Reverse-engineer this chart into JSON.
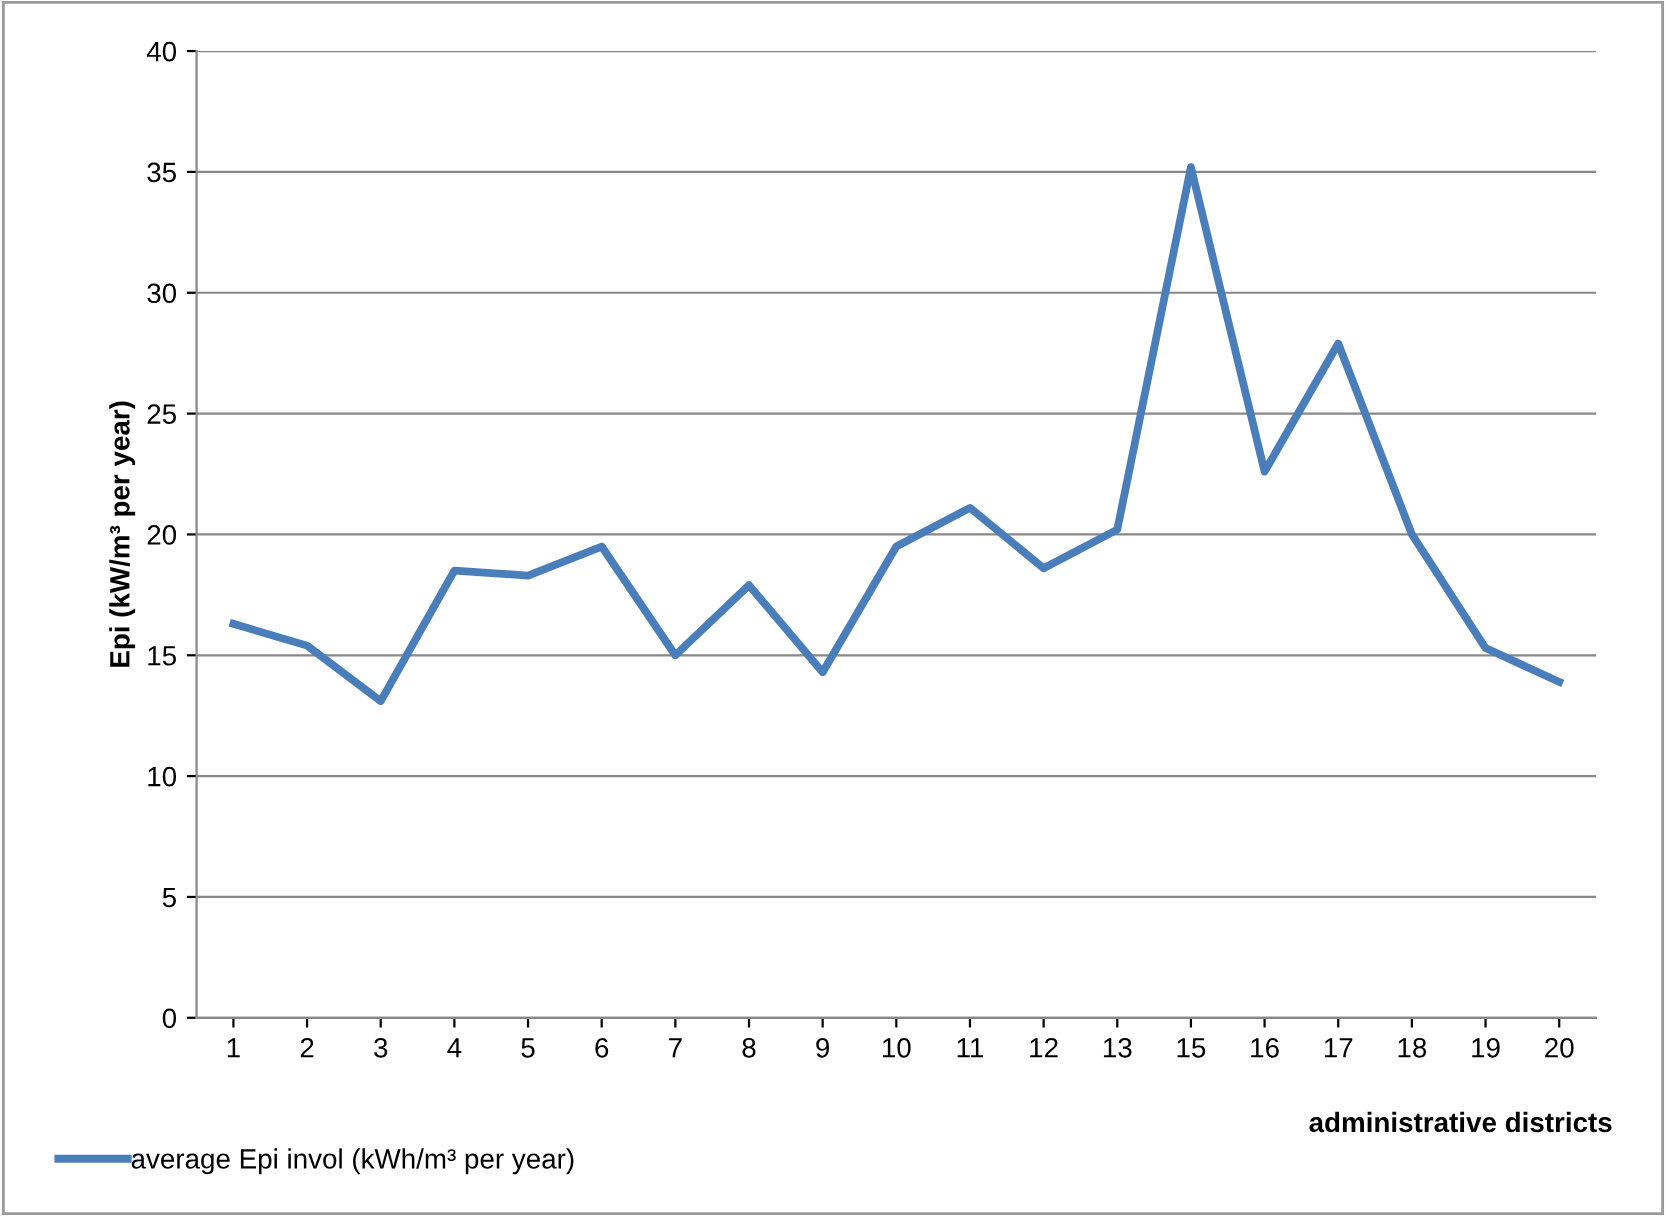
{
  "chart_data": {
    "type": "line",
    "ylabel": "Epi (kW/m³ per year)",
    "xlabel": "administrative districts",
    "categories": [
      "1",
      "2",
      "3",
      "4",
      "5",
      "6",
      "7",
      "8",
      "9",
      "10",
      "11",
      "12",
      "13",
      "15",
      "16",
      "17",
      "18",
      "19",
      "20"
    ],
    "series": [
      {
        "name": "average Epi invol (kWh/m³ per year)",
        "color": "#4a7ebb",
        "values": [
          16.3,
          15.4,
          13.1,
          18.5,
          18.3,
          19.5,
          15.0,
          17.9,
          14.3,
          19.5,
          21.1,
          18.6,
          20.2,
          35.2,
          22.6,
          27.9,
          20.0,
          15.3,
          13.9
        ]
      }
    ],
    "ylim": [
      0,
      40
    ],
    "yticks": [
      0,
      5,
      10,
      15,
      20,
      25,
      30,
      35,
      40
    ],
    "grid": "y",
    "legend": "bottom left",
    "marker": "none",
    "line_style": "solid"
  }
}
